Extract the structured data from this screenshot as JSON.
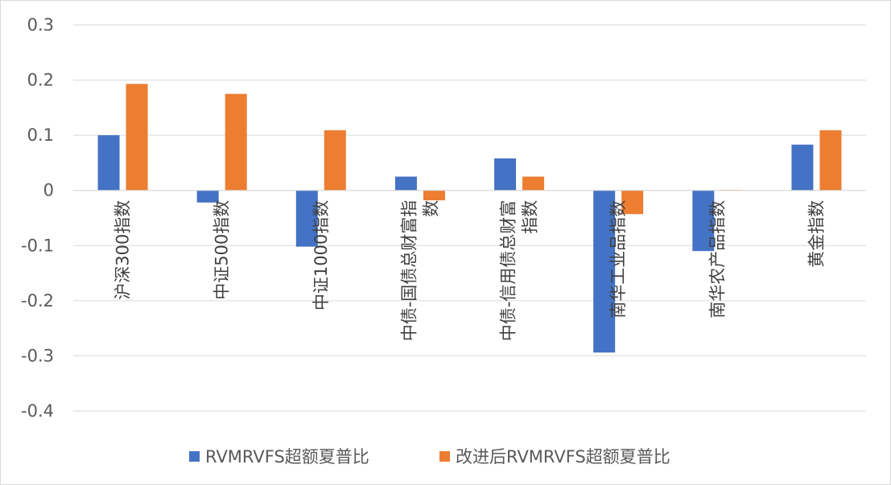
{
  "chart_data": {
    "type": "bar",
    "categories": [
      "沪深300指数",
      "中证500指数",
      "中证1000指数",
      "中债-国债总财富指数",
      "中债-信用债总财富指数",
      "南华工业品指数",
      "南华农产品指数",
      "黄金指数"
    ],
    "category_label_lines": [
      [
        "沪深300指数"
      ],
      [
        "中证500指数"
      ],
      [
        "中证1000指数"
      ],
      [
        "中债-国债总财富指",
        "数"
      ],
      [
        "中债-信用债总财富",
        "指数"
      ],
      [
        "南华工业品指数"
      ],
      [
        "南华农产品指数"
      ],
      [
        "黄金指数"
      ]
    ],
    "series": [
      {
        "name": "RVMRVFS超额夏普比",
        "color": "#4472C4",
        "values": [
          0.1,
          -0.022,
          -0.102,
          0.025,
          0.058,
          -0.294,
          -0.11,
          0.083
        ]
      },
      {
        "name": "改进后RVMRVFS超额夏普比",
        "color": "#ED7D31",
        "values": [
          0.193,
          0.175,
          0.109,
          -0.018,
          0.025,
          -0.043,
          0.001,
          0.109
        ]
      }
    ],
    "ylim": [
      -0.4,
      0.3
    ],
    "yticks": [
      0.3,
      0.2,
      0.1,
      0,
      -0.1,
      -0.2,
      -0.3,
      -0.4
    ],
    "ytick_labels": [
      "0.3",
      "0.2",
      "0.1",
      "0",
      "-0.1",
      "-0.2",
      "-0.3",
      "-0.4"
    ],
    "grid": true,
    "legend_position": "bottom",
    "title": "",
    "xlabel": "",
    "ylabel": ""
  }
}
